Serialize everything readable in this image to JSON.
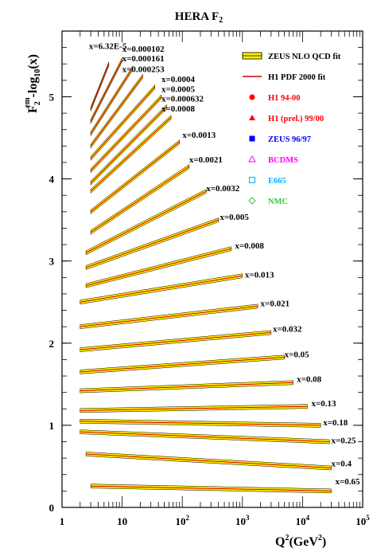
{
  "chart_data": {
    "type": "scatter",
    "title": "HERA F",
    "title_sub": "2",
    "ylabel": {
      "main": "F",
      "sub": "2",
      "sup": "em",
      "suffix": "-log",
      "suffix_sub": "10",
      "tail": "(x)"
    },
    "xlabel": {
      "main": "Q",
      "sup": "2",
      "tail": "(GeV",
      "tail_sup": "2",
      "end": ")"
    },
    "x_scale": "log",
    "xlim": [
      1,
      100000
    ],
    "ylim": [
      0,
      5.8
    ],
    "x_tick_labels": [
      {
        "value": 1,
        "base": "1",
        "exp": ""
      },
      {
        "value": 10,
        "base": "10",
        "exp": ""
      },
      {
        "value": 100,
        "base": "10",
        "exp": "2"
      },
      {
        "value": 1000,
        "base": "10",
        "exp": "3"
      },
      {
        "value": 10000,
        "base": "10",
        "exp": "4"
      },
      {
        "value": 100000,
        "base": "10",
        "exp": "5"
      }
    ],
    "y_ticks": [
      0,
      1,
      2,
      3,
      4,
      5
    ],
    "y_tick_labels": [
      "0",
      "1",
      "2",
      "3",
      "4",
      "5"
    ],
    "legend": {
      "placement": "top-right",
      "entries": [
        {
          "label": "ZEUS NLO QCD fit",
          "kind": "band",
          "color": "#ffee00",
          "text_color": "#000000"
        },
        {
          "label": "H1 PDF 2000 fit",
          "kind": "line",
          "color": "#cc0000",
          "text_color": "#000000"
        },
        {
          "label": "H1 94-00",
          "kind": "marker",
          "marker": "circle",
          "color": "#ff0000",
          "text_color": "#ff0000"
        },
        {
          "label": "H1 (prel.) 99/00",
          "kind": "marker",
          "marker": "triangle",
          "color": "#ff0000",
          "text_color": "#ff0000"
        },
        {
          "label": "ZEUS 96/97",
          "kind": "marker",
          "marker": "square",
          "color": "#0000ff",
          "text_color": "#0000ff"
        },
        {
          "label": "BCDMS",
          "kind": "marker",
          "marker": "triangle-open",
          "color": "#ff00ff",
          "text_color": "#ff00ff"
        },
        {
          "label": "E665",
          "kind": "marker",
          "marker": "square-open",
          "color": "#00b0ff",
          "text_color": "#00b0ff"
        },
        {
          "label": "NMC",
          "kind": "marker",
          "marker": "diamond-open",
          "color": "#33cc33",
          "text_color": "#33cc33"
        }
      ]
    },
    "series": [
      {
        "name": "x=6.32E-5",
        "label_at": [
          2.8,
          5.58
        ],
        "curve": [
          [
            3.0,
            4.85
          ],
          [
            6.0,
            5.4
          ]
        ]
      },
      {
        "name": "x=0.000102",
        "label_at": [
          10.0,
          5.55
        ],
        "curve": [
          [
            3.0,
            4.7
          ],
          [
            10.0,
            5.45
          ]
        ]
      },
      {
        "name": "x=0.000161",
        "label_at": [
          10.0,
          5.43
        ],
        "curve": [
          [
            3.0,
            4.55
          ],
          [
            15.0,
            5.35
          ]
        ]
      },
      {
        "name": "x=0.000253",
        "label_at": [
          10.0,
          5.3
        ],
        "curve": [
          [
            3.0,
            4.4
          ],
          [
            22.0,
            5.25
          ]
        ]
      },
      {
        "name": "x=0.0004",
        "label_at": [
          45.0,
          5.18
        ],
        "curve": [
          [
            3.0,
            4.25
          ],
          [
            35.0,
            5.12
          ]
        ]
      },
      {
        "name": "x=0.0005",
        "label_at": [
          45.0,
          5.06
        ],
        "curve": [
          [
            3.0,
            4.1
          ],
          [
            45.0,
            5.0
          ]
        ]
      },
      {
        "name": "x=0.000632",
        "label_at": [
          45.0,
          4.94
        ],
        "curve": [
          [
            3.0,
            3.95
          ],
          [
            55.0,
            4.88
          ]
        ]
      },
      {
        "name": "x=0.0008",
        "label_at": [
          45.0,
          4.82
        ],
        "curve": [
          [
            3.0,
            3.85
          ],
          [
            65.0,
            4.75
          ]
        ]
      },
      {
        "name": "x=0.0013",
        "label_at": [
          100.0,
          4.5
        ],
        "curve": [
          [
            3.0,
            3.6
          ],
          [
            90.0,
            4.45
          ]
        ]
      },
      {
        "name": "x=0.0021",
        "label_at": [
          130.0,
          4.2
        ],
        "curve": [
          [
            3.0,
            3.35
          ],
          [
            130.0,
            4.15
          ]
        ]
      },
      {
        "name": "x=0.0032",
        "label_at": [
          250.0,
          3.85
        ],
        "curve": [
          [
            2.5,
            3.1
          ],
          [
            250.0,
            3.85
          ]
        ]
      },
      {
        "name": "x=0.005",
        "label_at": [
          420.0,
          3.5
        ],
        "curve": [
          [
            2.5,
            2.92
          ],
          [
            400.0,
            3.5
          ]
        ]
      },
      {
        "name": "x=0.008",
        "label_at": [
          750.0,
          3.15
        ],
        "curve": [
          [
            2.5,
            2.7
          ],
          [
            650.0,
            3.15
          ]
        ]
      },
      {
        "name": "x=0.013",
        "label_at": [
          1100.0,
          2.8
        ],
        "curve": [
          [
            2.0,
            2.5
          ],
          [
            1000.0,
            2.82
          ]
        ]
      },
      {
        "name": "x=0.021",
        "label_at": [
          2000.0,
          2.45
        ],
        "curve": [
          [
            2.0,
            2.2
          ],
          [
            1800.0,
            2.45
          ]
        ]
      },
      {
        "name": "x=0.032",
        "label_at": [
          3200.0,
          2.14
        ],
        "curve": [
          [
            2.0,
            1.92
          ],
          [
            3000.0,
            2.13
          ]
        ]
      },
      {
        "name": "x=0.05",
        "label_at": [
          5000.0,
          1.83
        ],
        "curve": [
          [
            2.0,
            1.65
          ],
          [
            5000.0,
            1.83
          ]
        ]
      },
      {
        "name": "x=0.08",
        "label_at": [
          8000.0,
          1.53
        ],
        "curve": [
          [
            2.0,
            1.42
          ],
          [
            7000.0,
            1.52
          ]
        ]
      },
      {
        "name": "x=0.13",
        "label_at": [
          14000.0,
          1.23
        ],
        "curve": [
          [
            2.0,
            1.18
          ],
          [
            12000.0,
            1.23
          ]
        ]
      },
      {
        "name": "x=0.18",
        "label_at": [
          22000.0,
          1.0
        ],
        "curve": [
          [
            2.0,
            1.05
          ],
          [
            20000.0,
            1.0
          ]
        ]
      },
      {
        "name": "x=0.25",
        "label_at": [
          30000.0,
          0.78
        ],
        "curve": [
          [
            2.0,
            0.92
          ],
          [
            28000.0,
            0.8
          ]
        ]
      },
      {
        "name": "x=0.4",
        "label_at": [
          30000.0,
          0.5
        ],
        "curve": [
          [
            2.5,
            0.65
          ],
          [
            30000.0,
            0.48
          ]
        ]
      },
      {
        "name": "x=0.65",
        "label_at": [
          35000.0,
          0.28
        ],
        "curve": [
          [
            3.0,
            0.26
          ],
          [
            30000.0,
            0.2
          ]
        ]
      }
    ]
  }
}
